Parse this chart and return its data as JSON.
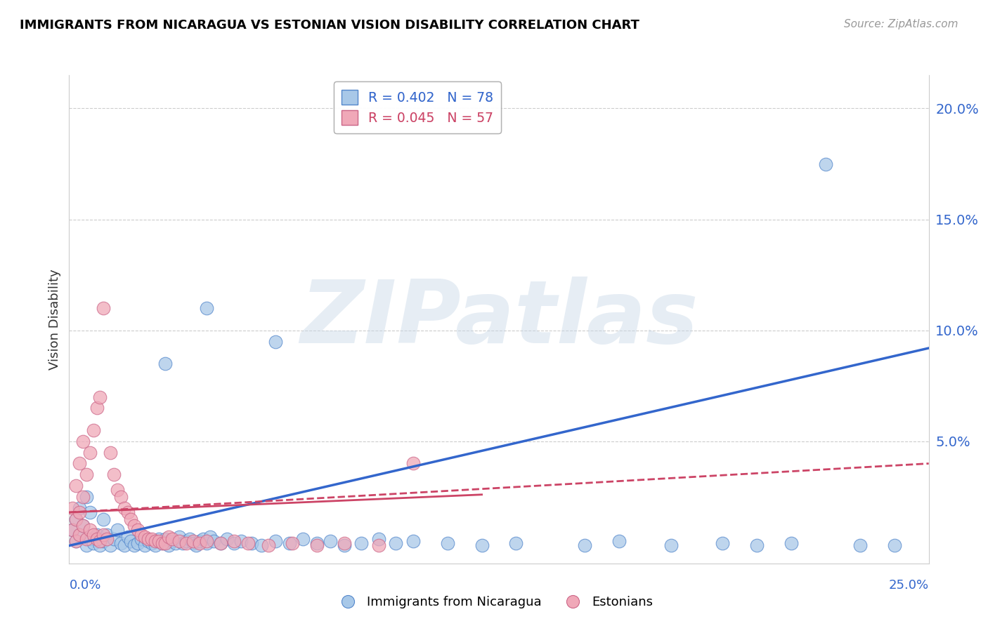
{
  "title": "IMMIGRANTS FROM NICARAGUA VS ESTONIAN VISION DISABILITY CORRELATION CHART",
  "source": "Source: ZipAtlas.com",
  "ylabel": "Vision Disability",
  "xlim": [
    0.0,
    0.25
  ],
  "ylim": [
    -0.005,
    0.215
  ],
  "ytick_vals": [
    0.0,
    0.05,
    0.1,
    0.15,
    0.2
  ],
  "ytick_labels": [
    "",
    "5.0%",
    "10.0%",
    "15.0%",
    "20.0%"
  ],
  "xtick_labels": [
    "0.0%",
    "25.0%"
  ],
  "legend_blue_r": "R = 0.402",
  "legend_blue_n": "N = 78",
  "legend_pink_r": "R = 0.045",
  "legend_pink_n": "N = 57",
  "legend_label_blue": "Immigrants from Nicaragua",
  "legend_label_pink": "Estonians",
  "blue_fill": "#a8c8e8",
  "blue_edge": "#5588cc",
  "pink_fill": "#f0a8b8",
  "pink_edge": "#cc6688",
  "trend_blue": "#3366cc",
  "trend_pink": "#cc4466",
  "grid_color": "#cccccc",
  "watermark": "ZIPatlas",
  "blue_x": [
    0.001,
    0.002,
    0.002,
    0.003,
    0.003,
    0.004,
    0.005,
    0.005,
    0.006,
    0.006,
    0.007,
    0.008,
    0.009,
    0.01,
    0.01,
    0.011,
    0.012,
    0.013,
    0.014,
    0.015,
    0.016,
    0.017,
    0.018,
    0.019,
    0.02,
    0.021,
    0.022,
    0.023,
    0.024,
    0.025,
    0.026,
    0.027,
    0.028,
    0.029,
    0.03,
    0.031,
    0.032,
    0.033,
    0.034,
    0.035,
    0.036,
    0.037,
    0.038,
    0.039,
    0.04,
    0.041,
    0.042,
    0.044,
    0.046,
    0.048,
    0.05,
    0.053,
    0.056,
    0.06,
    0.064,
    0.068,
    0.072,
    0.076,
    0.08,
    0.085,
    0.09,
    0.095,
    0.1,
    0.11,
    0.12,
    0.13,
    0.15,
    0.16,
    0.175,
    0.19,
    0.2,
    0.21,
    0.22,
    0.23,
    0.24,
    0.028,
    0.04,
    0.06
  ],
  "blue_y": [
    0.01,
    0.005,
    0.015,
    0.008,
    0.02,
    0.012,
    0.003,
    0.025,
    0.006,
    0.018,
    0.004,
    0.008,
    0.003,
    0.015,
    0.005,
    0.008,
    0.003,
    0.006,
    0.01,
    0.004,
    0.003,
    0.007,
    0.005,
    0.003,
    0.004,
    0.006,
    0.003,
    0.005,
    0.004,
    0.003,
    0.006,
    0.004,
    0.006,
    0.003,
    0.005,
    0.004,
    0.007,
    0.004,
    0.005,
    0.006,
    0.004,
    0.003,
    0.005,
    0.006,
    0.004,
    0.007,
    0.005,
    0.004,
    0.006,
    0.004,
    0.005,
    0.004,
    0.003,
    0.005,
    0.004,
    0.006,
    0.004,
    0.005,
    0.003,
    0.004,
    0.006,
    0.004,
    0.005,
    0.004,
    0.003,
    0.004,
    0.003,
    0.005,
    0.003,
    0.004,
    0.003,
    0.004,
    0.175,
    0.003,
    0.003,
    0.085,
    0.11,
    0.095
  ],
  "pink_x": [
    0.001,
    0.001,
    0.002,
    0.002,
    0.002,
    0.003,
    0.003,
    0.003,
    0.004,
    0.004,
    0.004,
    0.005,
    0.005,
    0.006,
    0.006,
    0.007,
    0.007,
    0.008,
    0.008,
    0.009,
    0.009,
    0.01,
    0.01,
    0.011,
    0.012,
    0.013,
    0.014,
    0.015,
    0.016,
    0.017,
    0.018,
    0.019,
    0.02,
    0.021,
    0.022,
    0.023,
    0.024,
    0.025,
    0.026,
    0.027,
    0.028,
    0.029,
    0.03,
    0.032,
    0.034,
    0.036,
    0.038,
    0.04,
    0.044,
    0.048,
    0.052,
    0.058,
    0.065,
    0.072,
    0.08,
    0.09,
    0.1
  ],
  "pink_y": [
    0.01,
    0.02,
    0.005,
    0.015,
    0.03,
    0.008,
    0.018,
    0.04,
    0.012,
    0.025,
    0.05,
    0.006,
    0.035,
    0.01,
    0.045,
    0.008,
    0.055,
    0.006,
    0.065,
    0.005,
    0.07,
    0.008,
    0.11,
    0.006,
    0.045,
    0.035,
    0.028,
    0.025,
    0.02,
    0.018,
    0.015,
    0.012,
    0.01,
    0.008,
    0.007,
    0.006,
    0.006,
    0.005,
    0.005,
    0.004,
    0.004,
    0.007,
    0.006,
    0.005,
    0.004,
    0.005,
    0.004,
    0.005,
    0.004,
    0.005,
    0.004,
    0.003,
    0.004,
    0.003,
    0.004,
    0.003,
    0.04
  ],
  "trend_blue_x0": 0.0,
  "trend_blue_x1": 0.25,
  "trend_blue_y0": 0.003,
  "trend_blue_y1": 0.092,
  "trend_pink_x0": 0.0,
  "trend_pink_x1": 0.25,
  "trend_pink_y0": 0.018,
  "trend_pink_y1": 0.04
}
